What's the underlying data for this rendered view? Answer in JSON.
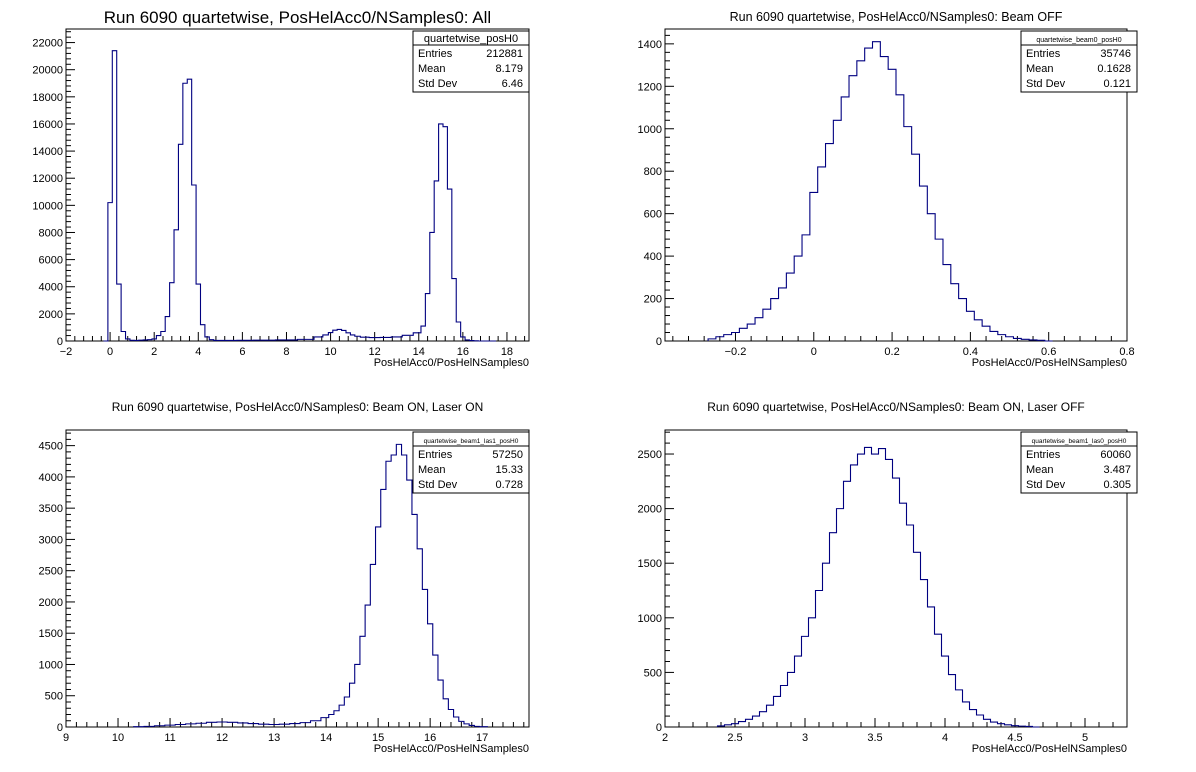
{
  "colors": {
    "histogram_line": "#000080",
    "frame": "#000000",
    "background": "#ffffff"
  },
  "chart_data": [
    {
      "type": "step-histogram",
      "title": "Run 6090 quartetwise, PosHelAcc0/NSamples0: All",
      "xlabel": "PosHelAcc0/PosHelNSamples0",
      "ylabel": "",
      "xlim": [
        -2,
        19
      ],
      "ylim": [
        0,
        23000
      ],
      "xticks": [
        -2,
        0,
        2,
        4,
        6,
        8,
        10,
        12,
        14,
        16,
        18
      ],
      "xtick_labels": [
        "−2",
        "0",
        "2",
        "4",
        "6",
        "8",
        "10",
        "12",
        "14",
        "16",
        "18"
      ],
      "yticks": [
        0,
        2000,
        4000,
        6000,
        8000,
        10000,
        12000,
        14000,
        16000,
        18000,
        20000,
        22000
      ],
      "stats": {
        "name": "quartetwise_posH0",
        "rows": [
          {
            "label": "Entries",
            "value": "212881"
          },
          {
            "label": "Mean",
            "value": "8.179"
          },
          {
            "label": "Std Dev",
            "value": "6.46"
          }
        ]
      },
      "legend_position": "top-right",
      "grid": false,
      "series": [
        {
          "x": [
            -0.2,
            0.0,
            0.2,
            0.4,
            0.6,
            0.8,
            1.0,
            1.2,
            1.4,
            1.6,
            1.8,
            2.0,
            2.2,
            2.4,
            2.6,
            2.8,
            3.0,
            3.2,
            3.4,
            3.6,
            3.8,
            4.0,
            4.2,
            4.4,
            4.6,
            4.8,
            5.0,
            5.5,
            6.0,
            7.0,
            8.0,
            9.0,
            9.5,
            9.8,
            10.0,
            10.2,
            10.4,
            10.6,
            10.8,
            11.0,
            11.2,
            11.5,
            12.0,
            12.5,
            13.0,
            13.5,
            14.0,
            14.2,
            14.4,
            14.6,
            14.8,
            15.0,
            15.2,
            15.4,
            15.6,
            15.8,
            16.0,
            16.2,
            16.4,
            16.6,
            16.8,
            17.0,
            17.2,
            17.4
          ],
          "y": [
            0,
            10200,
            21400,
            4200,
            700,
            150,
            50,
            40,
            60,
            80,
            100,
            150,
            400,
            700,
            1800,
            4300,
            8200,
            14500,
            19000,
            19300,
            11500,
            4200,
            1200,
            300,
            100,
            40,
            40,
            40,
            50,
            60,
            80,
            120,
            300,
            450,
            620,
            800,
            850,
            780,
            600,
            450,
            350,
            280,
            250,
            260,
            300,
            420,
            600,
            1100,
            3500,
            8000,
            11800,
            16000,
            15800,
            11200,
            4600,
            1400,
            300,
            80,
            30,
            10,
            0,
            0,
            0,
            0
          ]
        }
      ]
    },
    {
      "type": "step-histogram",
      "title": "Run 6090 quartetwise, PosHelAcc0/NSamples0: Beam OFF",
      "xlabel": "PosHelAcc0/PosHelNSamples0",
      "ylabel": "",
      "xlim": [
        -0.38,
        0.8
      ],
      "ylim": [
        0,
        1470
      ],
      "xticks": [
        -0.2,
        0,
        0.2,
        0.4,
        0.6,
        0.8
      ],
      "xtick_labels": [
        "−0.2",
        "0",
        "0.2",
        "0.4",
        "0.6",
        "0.8"
      ],
      "yticks": [
        0,
        200,
        400,
        600,
        800,
        1000,
        1200,
        1400
      ],
      "stats": {
        "name": "quartetwise_beam0_posH0",
        "rows": [
          {
            "label": "Entries",
            "value": "35746"
          },
          {
            "label": "Mean",
            "value": "0.1628"
          },
          {
            "label": "Std Dev",
            "value": "0.121"
          }
        ]
      },
      "legend_position": "top-right",
      "grid": false,
      "series": [
        {
          "x": [
            -0.26,
            -0.24,
            -0.22,
            -0.2,
            -0.18,
            -0.16,
            -0.14,
            -0.12,
            -0.1,
            -0.08,
            -0.06,
            -0.04,
            -0.02,
            0.0,
            0.02,
            0.04,
            0.06,
            0.08,
            0.1,
            0.12,
            0.14,
            0.16,
            0.18,
            0.2,
            0.22,
            0.24,
            0.26,
            0.28,
            0.3,
            0.32,
            0.34,
            0.36,
            0.38,
            0.4,
            0.42,
            0.44,
            0.46,
            0.48,
            0.5,
            0.52,
            0.54,
            0.56,
            0.58,
            0.6
          ],
          "y": [
            10,
            20,
            30,
            40,
            60,
            80,
            110,
            150,
            200,
            250,
            320,
            400,
            500,
            700,
            820,
            930,
            1040,
            1150,
            1250,
            1320,
            1380,
            1410,
            1340,
            1280,
            1160,
            1010,
            880,
            730,
            600,
            480,
            360,
            270,
            200,
            140,
            100,
            70,
            45,
            30,
            20,
            12,
            8,
            5,
            3,
            0
          ]
        }
      ]
    },
    {
      "type": "step-histogram",
      "title": "Run 6090 quartetwise, PosHelAcc0/NSamples0: Beam ON, Laser ON",
      "xlabel": "PosHelAcc0/PosHelNSamples0",
      "ylabel": "",
      "xlim": [
        9,
        17.9
      ],
      "ylim": [
        0,
        4750
      ],
      "xticks": [
        9,
        10,
        11,
        12,
        13,
        14,
        15,
        16,
        17
      ],
      "xtick_labels": [
        "9",
        "10",
        "11",
        "12",
        "13",
        "14",
        "15",
        "16",
        "17"
      ],
      "yticks": [
        0,
        500,
        1000,
        1500,
        2000,
        2500,
        3000,
        3500,
        4000,
        4500
      ],
      "stats": {
        "name": "quartetwise_beam1_las1_posH0",
        "rows": [
          {
            "label": "Entries",
            "value": "57250"
          },
          {
            "label": "Mean",
            "value": "15.33"
          },
          {
            "label": "Std Dev",
            "value": "0.728"
          }
        ]
      },
      "legend_position": "top-right",
      "grid": false,
      "series": [
        {
          "x": [
            10.4,
            10.6,
            10.8,
            11.0,
            11.2,
            11.4,
            11.6,
            11.8,
            12.0,
            12.2,
            12.4,
            12.6,
            12.8,
            13.0,
            13.2,
            13.4,
            13.6,
            13.8,
            14.0,
            14.1,
            14.2,
            14.3,
            14.4,
            14.5,
            14.6,
            14.7,
            14.8,
            14.9,
            15.0,
            15.1,
            15.2,
            15.3,
            15.4,
            15.5,
            15.6,
            15.7,
            15.8,
            15.9,
            16.0,
            16.1,
            16.2,
            16.3,
            16.4,
            16.5,
            16.6,
            16.7,
            16.8,
            16.9,
            17.0
          ],
          "y": [
            5,
            10,
            20,
            30,
            40,
            50,
            60,
            75,
            80,
            75,
            65,
            55,
            45,
            40,
            45,
            55,
            70,
            100,
            150,
            200,
            260,
            350,
            480,
            700,
            1000,
            1450,
            1950,
            2600,
            3200,
            3800,
            4250,
            4350,
            4520,
            4350,
            3950,
            3400,
            2850,
            2200,
            1650,
            1150,
            750,
            450,
            280,
            160,
            90,
            50,
            25,
            10,
            5
          ]
        }
      ]
    },
    {
      "type": "step-histogram",
      "title": "Run 6090 quartetwise, PosHelAcc0/NSamples0: Beam ON, Laser OFF",
      "xlabel": "PosHelAcc0/PosHelNSamples0",
      "ylabel": "",
      "xlim": [
        2,
        5.3
      ],
      "ylim": [
        0,
        2720
      ],
      "xticks": [
        2,
        2.5,
        3,
        3.5,
        4,
        4.5,
        5
      ],
      "xtick_labels": [
        "2",
        "2.5",
        "3",
        "3.5",
        "4",
        "4.5",
        "5"
      ],
      "yticks": [
        0,
        500,
        1000,
        1500,
        2000,
        2500
      ],
      "stats": {
        "name": "quartetwise_beam1_las0_posH0",
        "rows": [
          {
            "label": "Entries",
            "value": "60060"
          },
          {
            "label": "Mean",
            "value": "3.487"
          },
          {
            "label": "Std Dev",
            "value": "0.305"
          }
        ]
      },
      "legend_position": "top-right",
      "grid": false,
      "series": [
        {
          "x": [
            2.4,
            2.45,
            2.5,
            2.55,
            2.6,
            2.65,
            2.7,
            2.75,
            2.8,
            2.85,
            2.9,
            2.95,
            3.0,
            3.05,
            3.1,
            3.15,
            3.2,
            3.25,
            3.3,
            3.35,
            3.4,
            3.45,
            3.5,
            3.55,
            3.6,
            3.65,
            3.7,
            3.75,
            3.8,
            3.85,
            3.9,
            3.95,
            4.0,
            4.05,
            4.1,
            4.15,
            4.2,
            4.25,
            4.3,
            4.35,
            4.4,
            4.45,
            4.5,
            4.55,
            4.6,
            4.65
          ],
          "y": [
            10,
            20,
            30,
            50,
            70,
            100,
            140,
            200,
            280,
            380,
            500,
            650,
            830,
            1000,
            1250,
            1500,
            1780,
            2000,
            2250,
            2400,
            2500,
            2560,
            2500,
            2550,
            2450,
            2280,
            2050,
            1850,
            1600,
            1350,
            1100,
            850,
            650,
            480,
            340,
            230,
            160,
            110,
            70,
            45,
            30,
            20,
            12,
            8,
            5,
            0
          ]
        }
      ]
    }
  ]
}
